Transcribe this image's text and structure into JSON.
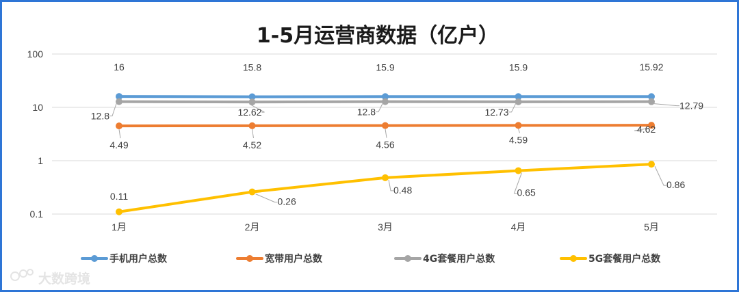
{
  "chart_data": {
    "type": "line",
    "title": "1-5月运营商数据（亿户）",
    "categories": [
      "1月",
      "2月",
      "3月",
      "4月",
      "5月"
    ],
    "y_scale": "log",
    "ylim": [
      0.1,
      100
    ],
    "y_ticks": [
      "0.1",
      "1",
      "10",
      "100"
    ],
    "grid": true,
    "legend_position": "bottom",
    "series": [
      {
        "name": "手机用户总数",
        "color": "#5b9bd5",
        "values": [
          16,
          15.8,
          15.9,
          15.9,
          15.92
        ],
        "labels": [
          "16",
          "15.8",
          "15.9",
          "15.9",
          "15.92"
        ]
      },
      {
        "name": "宽带用户总数",
        "color": "#ed7d31",
        "values": [
          4.49,
          4.52,
          4.56,
          4.59,
          4.62
        ],
        "labels": [
          "4.49",
          "4.52",
          "4.56",
          "4.59",
          "4.62"
        ]
      },
      {
        "name": "4G套餐用户总数",
        "color": "#a5a5a5",
        "values": [
          12.8,
          12.62,
          12.8,
          12.73,
          12.79
        ],
        "labels": [
          "12.8",
          "12.62",
          "12.8",
          "12.73",
          "12.79"
        ]
      },
      {
        "name": "5G套餐用户总数",
        "color": "#ffc000",
        "values": [
          0.11,
          0.26,
          0.48,
          0.65,
          0.86
        ],
        "labels": [
          "0.11",
          "0.26",
          "0.48",
          "0.65",
          "0.86"
        ]
      }
    ]
  },
  "watermark": {
    "text": "大数跨境"
  },
  "frame": {
    "border_color": "#2e75d6"
  }
}
